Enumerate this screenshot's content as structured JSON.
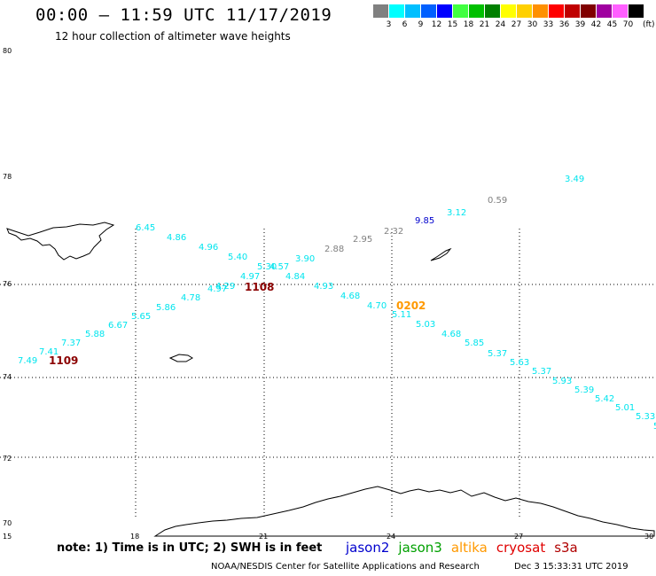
{
  "header": {
    "title": "00:00 – 11:59 UTC 11/17/2019",
    "subtitle": "12 hour collection of altimeter wave heights"
  },
  "legend": {
    "unit": "(ft)",
    "items": [
      {
        "label": "",
        "color": "#808080"
      },
      {
        "label": "3",
        "color": "#00ffff"
      },
      {
        "label": "6",
        "color": "#00bfff"
      },
      {
        "label": "9",
        "color": "#0060ff"
      },
      {
        "label": "12",
        "color": "#0000ff"
      },
      {
        "label": "15",
        "color": "#40ff40"
      },
      {
        "label": "18",
        "color": "#00c000"
      },
      {
        "label": "21",
        "color": "#008000"
      },
      {
        "label": "24",
        "color": "#ffff00"
      },
      {
        "label": "27",
        "color": "#ffd000"
      },
      {
        "label": "30",
        "color": "#ff9000"
      },
      {
        "label": "33",
        "color": "#ff0000"
      },
      {
        "label": "36",
        "color": "#c00000"
      },
      {
        "label": "39",
        "color": "#800000"
      },
      {
        "label": "42",
        "color": "#a000a0"
      },
      {
        "label": "45",
        "color": "#ff60ff"
      },
      {
        "label": "70",
        "color": "#000000"
      }
    ]
  },
  "axes": {
    "lat_labels": [
      {
        "value": 80,
        "label": "80"
      },
      {
        "value": 78,
        "label": "78"
      },
      {
        "value": 76,
        "label": "76"
      },
      {
        "value": 74,
        "label": "74"
      },
      {
        "value": 72,
        "label": "72"
      },
      {
        "value": 70,
        "label": "70"
      }
    ],
    "lon_labels": [
      {
        "value": 15,
        "label": "15"
      },
      {
        "value": 18,
        "label": "18"
      },
      {
        "value": 21,
        "label": "21"
      },
      {
        "value": 24,
        "label": "24"
      },
      {
        "value": 27,
        "label": "27"
      },
      {
        "value": 30,
        "label": "30"
      }
    ]
  },
  "swh_readings": [
    {
      "v": "6.45",
      "c": "#00e5ee"
    },
    {
      "v": "4.86",
      "c": "#00e5ee"
    },
    {
      "v": "4.96",
      "c": "#00e5ee"
    },
    {
      "v": "5.40",
      "c": "#00e5ee"
    },
    {
      "v": "5.30",
      "c": "#00e5ee"
    },
    {
      "v": "4.57",
      "c": "#00e5ee"
    },
    {
      "v": "4.97",
      "c": "#00e5ee"
    },
    {
      "v": "3.90",
      "c": "#00e5ee"
    },
    {
      "v": "4.84",
      "c": "#00e5ee"
    },
    {
      "v": "2.88",
      "c": "#808080"
    },
    {
      "v": "2.95",
      "c": "#808080"
    },
    {
      "v": "2.32",
      "c": "#808080"
    },
    {
      "v": "9.85",
      "c": "#0000cd"
    },
    {
      "v": "3.12",
      "c": "#00e5ee"
    },
    {
      "v": "0.59",
      "c": "#808080"
    },
    {
      "v": "3.49",
      "c": "#00e5ee"
    },
    {
      "v": "4.29",
      "c": "#00e5ee"
    },
    {
      "v": "4.97",
      "c": "#00e5ee"
    },
    {
      "v": "4.78",
      "c": "#00e5ee"
    },
    {
      "v": "5.86",
      "c": "#00e5ee"
    },
    {
      "v": "5.65",
      "c": "#00e5ee"
    },
    {
      "v": "6.67",
      "c": "#00e5ee"
    },
    {
      "v": "5.88",
      "c": "#00e5ee"
    },
    {
      "v": "7.37",
      "c": "#00e5ee"
    },
    {
      "v": "7.41",
      "c": "#00e5ee"
    },
    {
      "v": "7.49",
      "c": "#00e5ee"
    },
    {
      "v": "4.93",
      "c": "#00e5ee"
    },
    {
      "v": "4.68",
      "c": "#00e5ee"
    },
    {
      "v": "4.70",
      "c": "#00e5ee"
    },
    {
      "v": "5.11",
      "c": "#00e5ee"
    },
    {
      "v": "5.03",
      "c": "#00e5ee"
    },
    {
      "v": "4.68",
      "c": "#00e5ee"
    },
    {
      "v": "5.85",
      "c": "#00e5ee"
    },
    {
      "v": "5.37",
      "c": "#00e5ee"
    },
    {
      "v": "5.63",
      "c": "#00e5ee"
    },
    {
      "v": "5.37",
      "c": "#00e5ee"
    },
    {
      "v": "5.93",
      "c": "#00e5ee"
    },
    {
      "v": "5.39",
      "c": "#00e5ee"
    },
    {
      "v": "5.42",
      "c": "#00e5ee"
    },
    {
      "v": "5.01",
      "c": "#00e5ee"
    },
    {
      "v": "5.33",
      "c": "#00e5ee"
    },
    {
      "v": "5",
      "c": "#00e5ee"
    }
  ],
  "track_times": [
    {
      "v": "1108",
      "c": "#8b0000"
    },
    {
      "v": "1109",
      "c": "#8b0000"
    },
    {
      "v": "0202",
      "c": "#ff9900"
    }
  ],
  "footer": {
    "note": "note: 1) Time is in UTC; 2) SWH is in feet",
    "satellites": [
      {
        "name": "jason2",
        "color": "#0000cd"
      },
      {
        "name": "jason3",
        "color": "#00a000"
      },
      {
        "name": "altika",
        "color": "#ff9900"
      },
      {
        "name": "cryosat",
        "color": "#e00000"
      },
      {
        "name": "s3a",
        "color": "#b00000"
      }
    ],
    "credit": "NOAA/NESDIS Center for Satellite Applications and Research",
    "date": "Dec  3 15:33:31 UTC 2019"
  }
}
